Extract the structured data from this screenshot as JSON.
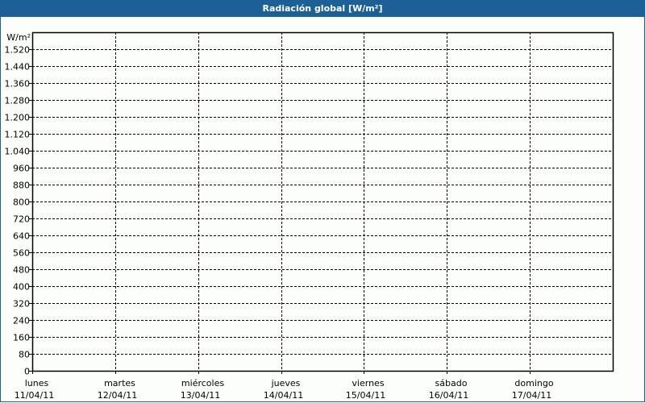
{
  "title": "Radiación global [W/m²]",
  "colors": {
    "title_bar": "#1d6096",
    "background": "#fcfefc",
    "grid": "#000000"
  },
  "chart_data": {
    "type": "line",
    "title": "Radiación global [W/m²]",
    "ylabel": "W/m²",
    "ylim": [
      0,
      1600
    ],
    "yticks": [
      0,
      80,
      160,
      240,
      320,
      400,
      480,
      560,
      640,
      720,
      800,
      880,
      960,
      1040,
      1120,
      1200,
      1280,
      1360,
      1440,
      1520
    ],
    "ytick_labels": [
      "0",
      "80",
      "160",
      "240",
      "320",
      "400",
      "480",
      "560",
      "640",
      "720",
      "800",
      "880",
      "960",
      "1.040",
      "1.120",
      "1.200",
      "1.280",
      "1.360",
      "1.440",
      "1.520"
    ],
    "xticks": [
      {
        "day": "lunes",
        "date": "11/04/11"
      },
      {
        "day": "martes",
        "date": "12/04/11"
      },
      {
        "day": "miércoles",
        "date": "13/04/11"
      },
      {
        "day": "jueves",
        "date": "14/04/11"
      },
      {
        "day": "viernes",
        "date": "15/04/11"
      },
      {
        "day": "sábado",
        "date": "16/04/11"
      },
      {
        "day": "domingo",
        "date": "17/04/11"
      }
    ],
    "grid": true,
    "series": []
  }
}
